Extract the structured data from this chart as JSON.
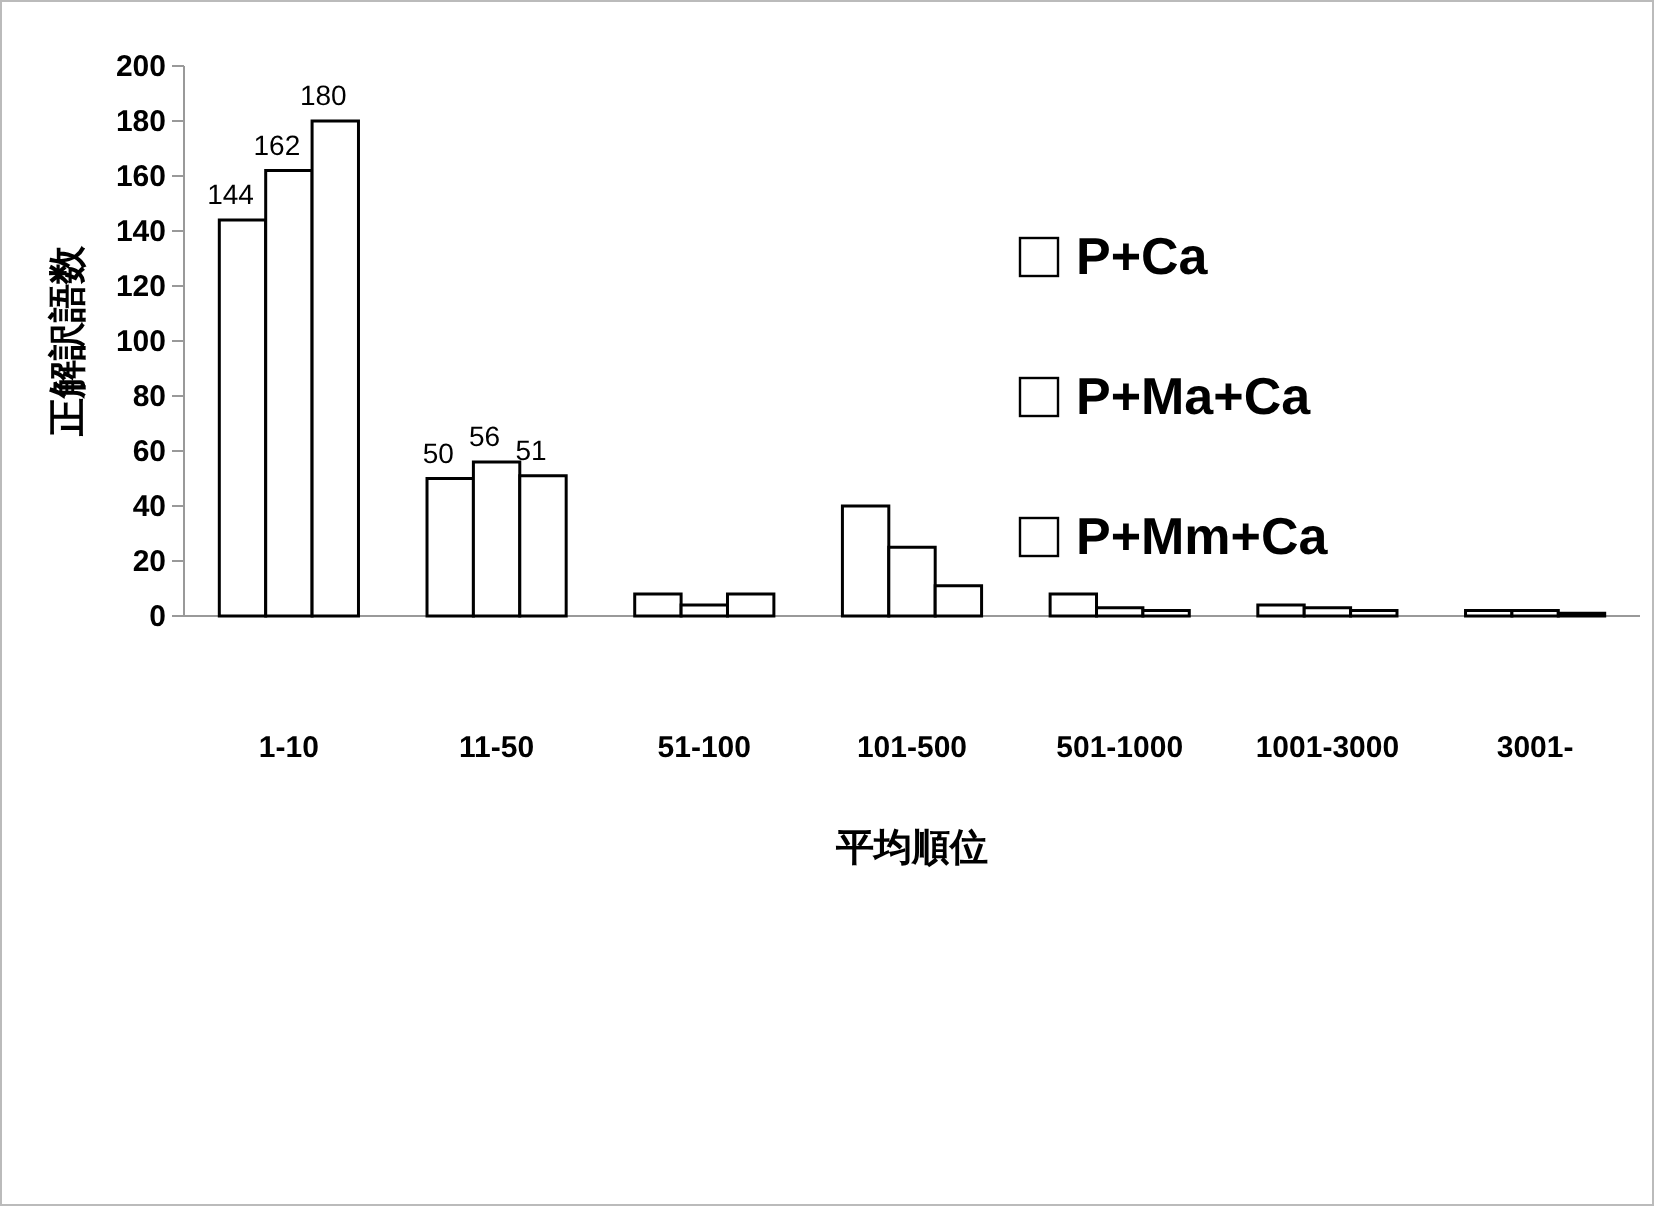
{
  "chart_data": {
    "type": "bar",
    "xlabel": "平均順位",
    "ylabel": "正解訳語数",
    "categories": [
      "1-10",
      "11-50",
      "51-100",
      "101-500",
      "501-1000",
      "1001-3000",
      "3001-"
    ],
    "series": [
      {
        "name": "P+Ca",
        "color": "#ffffff",
        "values": [
          144,
          50,
          8,
          40,
          8,
          4,
          2
        ],
        "value_labels": [
          "144",
          "50",
          null,
          null,
          null,
          null,
          null
        ]
      },
      {
        "name": "P+Ma+Ca",
        "color": "#ffffff",
        "values": [
          162,
          56,
          4,
          25,
          3,
          3,
          2
        ],
        "value_labels": [
          "162",
          "56",
          null,
          null,
          null,
          null,
          null
        ]
      },
      {
        "name": "P+Mm+Ca",
        "color": "#ffffff",
        "values": [
          180,
          51,
          8,
          11,
          2,
          2,
          1
        ],
        "value_labels": [
          "180",
          "51",
          null,
          null,
          null,
          null,
          null
        ]
      }
    ],
    "ylim": [
      0,
      200
    ],
    "yticks": [
      0,
      20,
      40,
      60,
      80,
      100,
      120,
      140,
      160,
      180,
      200
    ],
    "grid": false,
    "legend": "right"
  }
}
